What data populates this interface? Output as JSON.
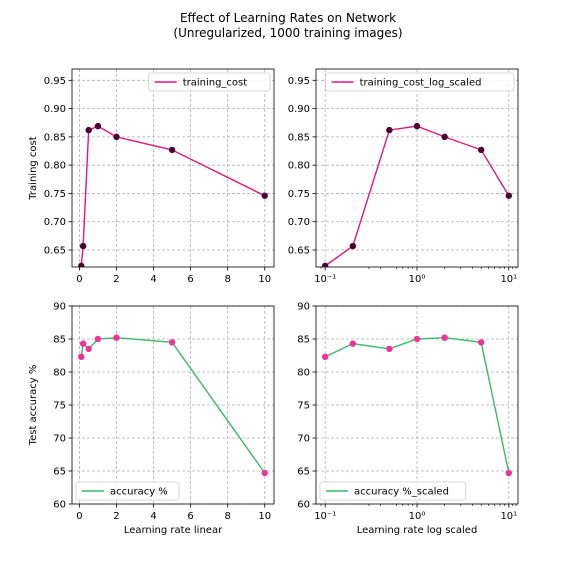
{
  "figure": {
    "title_line1": "Effect of Learning Rates on Network",
    "title_line2": "(Unregularized, 1000 training images)"
  },
  "chart_data": [
    {
      "type": "line",
      "panel": "top-left",
      "xscale": "linear",
      "x": [
        0.1,
        0.2,
        0.5,
        1,
        2,
        5,
        10
      ],
      "series": [
        {
          "name": "training_cost",
          "values": [
            0.622,
            0.657,
            0.862,
            0.869,
            0.85,
            0.827,
            0.746
          ],
          "line_color": "#e0197d",
          "marker_color": "#4a0033"
        }
      ],
      "xlim": [
        -0.4,
        10.5
      ],
      "ylim": [
        0.62,
        0.97
      ],
      "xticks": [
        0,
        2,
        4,
        6,
        8,
        10
      ],
      "xtick_labels": [
        "0",
        "2",
        "4",
        "6",
        "8",
        "10"
      ],
      "yticks": [
        0.65,
        0.7,
        0.75,
        0.8,
        0.85,
        0.9,
        0.95
      ],
      "ytick_labels": [
        "0.65",
        "0.70",
        "0.75",
        "0.80",
        "0.85",
        "0.90",
        "0.95"
      ],
      "xlabel": "",
      "ylabel": "Training cost",
      "legend_label": "training_cost",
      "legend_position": "top-right",
      "grid": true
    },
    {
      "type": "line",
      "panel": "top-right",
      "xscale": "log",
      "x": [
        0.1,
        0.2,
        0.5,
        1,
        2,
        5,
        10
      ],
      "series": [
        {
          "name": "training_cost_log_scaled",
          "values": [
            0.622,
            0.657,
            0.862,
            0.869,
            0.85,
            0.827,
            0.746
          ],
          "line_color": "#e0197d",
          "marker_color": "#4a0033"
        }
      ],
      "xlim": [
        0.0794,
        12.59
      ],
      "ylim": [
        0.62,
        0.97
      ],
      "xticks": [
        0.1,
        1,
        10
      ],
      "xtick_labels": [
        "10⁻¹",
        "10⁰",
        "10¹"
      ],
      "yticks": [
        0.65,
        0.7,
        0.75,
        0.8,
        0.85,
        0.9,
        0.95
      ],
      "ytick_labels": [
        "0.65",
        "0.70",
        "0.75",
        "0.80",
        "0.85",
        "0.90",
        "0.95"
      ],
      "xlabel": "",
      "ylabel": "",
      "legend_label": "training_cost_log_scaled",
      "legend_position": "top-right",
      "grid": true
    },
    {
      "type": "line",
      "panel": "bottom-left",
      "xscale": "linear",
      "x": [
        0.1,
        0.2,
        0.5,
        1,
        2,
        5,
        10
      ],
      "series": [
        {
          "name": "accuracy %",
          "values": [
            82.3,
            84.3,
            83.5,
            85.0,
            85.2,
            84.5,
            64.7
          ],
          "line_color": "#3cb86a",
          "marker_color": "#ee3399"
        }
      ],
      "xlim": [
        -0.4,
        10.5
      ],
      "ylim": [
        60,
        90
      ],
      "xticks": [
        0,
        2,
        4,
        6,
        8,
        10
      ],
      "xtick_labels": [
        "0",
        "2",
        "4",
        "6",
        "8",
        "10"
      ],
      "yticks": [
        60,
        65,
        70,
        75,
        80,
        85,
        90
      ],
      "ytick_labels": [
        "60",
        "65",
        "70",
        "75",
        "80",
        "85",
        "90"
      ],
      "xlabel": "Learning rate linear",
      "ylabel": "Test accuracy %",
      "legend_label": "accuracy %",
      "legend_position": "bottom-left",
      "grid": true
    },
    {
      "type": "line",
      "panel": "bottom-right",
      "xscale": "log",
      "x": [
        0.1,
        0.2,
        0.5,
        1,
        2,
        5,
        10
      ],
      "series": [
        {
          "name": "accuracy %_scaled",
          "values": [
            82.3,
            84.3,
            83.5,
            85.0,
            85.2,
            84.5,
            64.7
          ],
          "line_color": "#3cb86a",
          "marker_color": "#ee3399"
        }
      ],
      "xlim": [
        0.0794,
        12.59
      ],
      "ylim": [
        60,
        90
      ],
      "xticks": [
        0.1,
        1,
        10
      ],
      "xtick_labels": [
        "10⁻¹",
        "10⁰",
        "10¹"
      ],
      "yticks": [
        60,
        65,
        70,
        75,
        80,
        85,
        90
      ],
      "ytick_labels": [
        "60",
        "65",
        "70",
        "75",
        "80",
        "85",
        "90"
      ],
      "xlabel": "Learning rate log scaled",
      "ylabel": "",
      "legend_label": "accuracy %_scaled",
      "legend_position": "bottom-left",
      "grid": true
    }
  ]
}
